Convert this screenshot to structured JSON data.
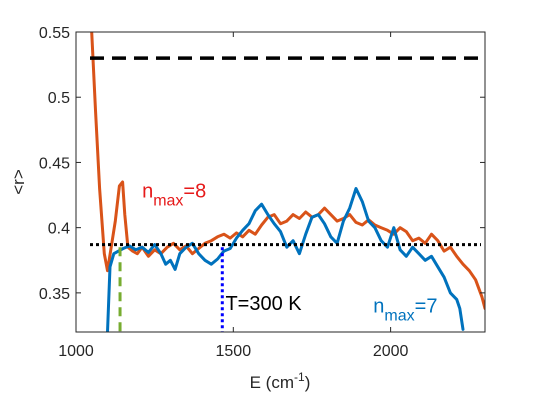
{
  "chart_data": {
    "type": "line",
    "title": "",
    "xlabel": "E (cm",
    "xlabel_sup": "-1",
    "xlabel_close": ")",
    "ylabel": "<r>",
    "xlim": [
      1000,
      2300
    ],
    "ylim": [
      0.32,
      0.55
    ],
    "xticks": [
      1000,
      1500,
      2000
    ],
    "xtick_labels": [
      "1000",
      "1500",
      "2000"
    ],
    "yticks": [
      0.35,
      0.4,
      0.45,
      0.5,
      0.55
    ],
    "ytick_labels": [
      "0.35",
      "0.4",
      "0.45",
      "0.5",
      "0.55"
    ],
    "grid": false,
    "series": [
      {
        "name": "n_max=8",
        "color": "#d95319",
        "x": [
          1050,
          1062,
          1075,
          1090,
          1100,
          1112,
          1125,
          1138,
          1148,
          1155,
          1165,
          1180,
          1195,
          1210,
          1230,
          1250,
          1270,
          1290,
          1310,
          1330,
          1350,
          1370,
          1390,
          1410,
          1430,
          1450,
          1470,
          1490,
          1510,
          1530,
          1550,
          1570,
          1590,
          1610,
          1630,
          1650,
          1670,
          1690,
          1710,
          1730,
          1750,
          1770,
          1790,
          1810,
          1830,
          1850,
          1870,
          1890,
          1910,
          1930,
          1950,
          1970,
          1990,
          2010,
          2030,
          2050,
          2070,
          2090,
          2110,
          2130,
          2150,
          2170,
          2190,
          2210,
          2230,
          2250,
          2270,
          2290,
          2300
        ],
        "y": [
          0.55,
          0.49,
          0.43,
          0.38,
          0.367,
          0.385,
          0.405,
          0.432,
          0.435,
          0.41,
          0.385,
          0.382,
          0.38,
          0.385,
          0.378,
          0.383,
          0.38,
          0.385,
          0.388,
          0.383,
          0.386,
          0.38,
          0.384,
          0.388,
          0.39,
          0.393,
          0.395,
          0.392,
          0.396,
          0.393,
          0.398,
          0.395,
          0.402,
          0.408,
          0.41,
          0.403,
          0.405,
          0.41,
          0.407,
          0.412,
          0.408,
          0.41,
          0.415,
          0.41,
          0.405,
          0.407,
          0.41,
          0.404,
          0.402,
          0.406,
          0.402,
          0.4,
          0.398,
          0.395,
          0.4,
          0.397,
          0.39,
          0.392,
          0.388,
          0.395,
          0.39,
          0.382,
          0.385,
          0.378,
          0.372,
          0.367,
          0.36,
          0.347,
          0.338
        ]
      },
      {
        "name": "n_max=7",
        "color": "#0072bd",
        "x": [
          1100,
          1108,
          1120,
          1135,
          1150,
          1170,
          1190,
          1210,
          1230,
          1250,
          1270,
          1285,
          1300,
          1315,
          1330,
          1350,
          1370,
          1390,
          1410,
          1430,
          1450,
          1470,
          1490,
          1510,
          1530,
          1550,
          1570,
          1590,
          1610,
          1630,
          1650,
          1670,
          1690,
          1710,
          1730,
          1750,
          1770,
          1790,
          1810,
          1830,
          1850,
          1870,
          1890,
          1910,
          1930,
          1950,
          1970,
          1990,
          2010,
          2030,
          2050,
          2070,
          2090,
          2110,
          2130,
          2150,
          2170,
          2190,
          2210,
          2220,
          2230
        ],
        "y": [
          0.32,
          0.37,
          0.38,
          0.382,
          0.384,
          0.386,
          0.383,
          0.385,
          0.381,
          0.387,
          0.38,
          0.372,
          0.375,
          0.368,
          0.38,
          0.385,
          0.388,
          0.38,
          0.375,
          0.372,
          0.376,
          0.382,
          0.384,
          0.392,
          0.398,
          0.403,
          0.413,
          0.418,
          0.41,
          0.403,
          0.397,
          0.385,
          0.39,
          0.38,
          0.395,
          0.408,
          0.41,
          0.403,
          0.393,
          0.388,
          0.405,
          0.415,
          0.43,
          0.42,
          0.405,
          0.4,
          0.39,
          0.385,
          0.4,
          0.383,
          0.378,
          0.385,
          0.38,
          0.375,
          0.378,
          0.37,
          0.362,
          0.35,
          0.345,
          0.338,
          0.322
        ]
      }
    ],
    "reference_lines": [
      {
        "axis": "y",
        "value": 0.53,
        "color": "#000000",
        "style": "dashed"
      },
      {
        "axis": "y",
        "value": 0.387,
        "color": "#000000",
        "style": "dotted"
      },
      {
        "axis": "x",
        "value": 1140,
        "y_to": 0.385,
        "color": "#77ac30",
        "style": "dashed"
      },
      {
        "axis": "x",
        "value": 1465,
        "y_to": 0.385,
        "color": "#0000ff",
        "style": "dotted"
      }
    ],
    "annotations": {
      "nmax8": {
        "base": "n",
        "sub": "max",
        "rest": "=8",
        "color": "#e61919",
        "x": 1210,
        "y": 0.423
      },
      "nmax7": {
        "base": "n",
        "sub": "max",
        "rest": "=7",
        "color": "#0072bd",
        "x": 1945,
        "y": 0.335
      },
      "temp": {
        "text": "T=300 K",
        "color": "#000000",
        "x": 1475,
        "y": 0.337
      }
    }
  }
}
